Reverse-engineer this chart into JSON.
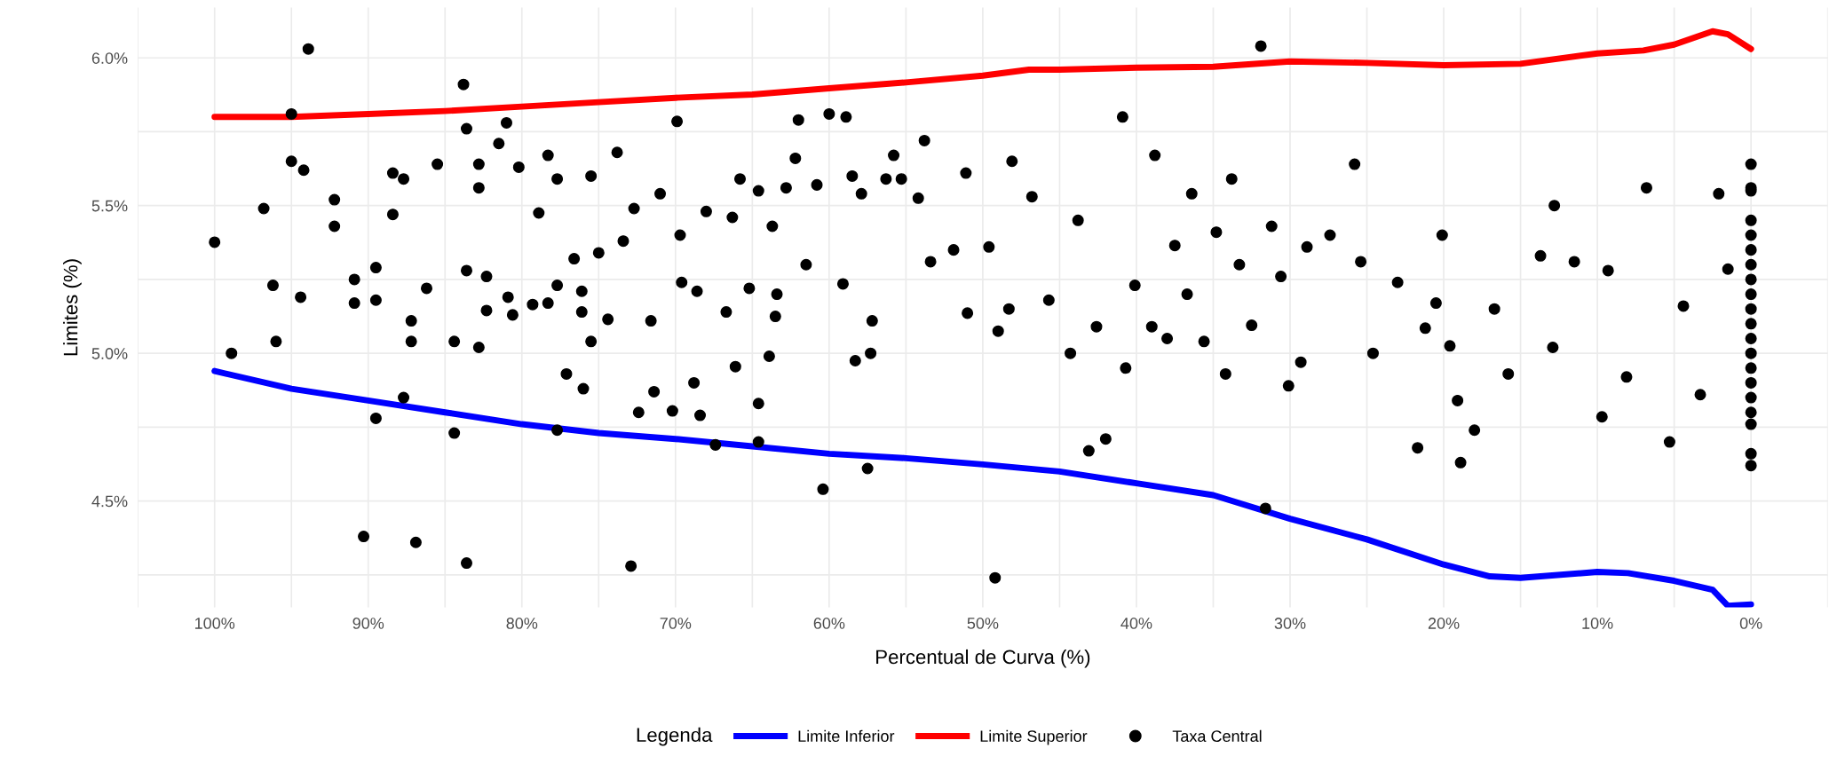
{
  "chart_data": {
    "type": "line",
    "xlabel": "Percentual de Curva (%)",
    "ylabel": "Limites (%)",
    "legend_title": "Legenda",
    "legend": "bottom",
    "grid": true,
    "xlim": [
      105,
      -5
    ],
    "ylim": [
      4.14,
      6.17
    ],
    "xticks": [
      {
        "value": 100,
        "label": "100%"
      },
      {
        "value": 90,
        "label": "90%"
      },
      {
        "value": 80,
        "label": "80%"
      },
      {
        "value": 70,
        "label": "70%"
      },
      {
        "value": 60,
        "label": "60%"
      },
      {
        "value": 50,
        "label": "50%"
      },
      {
        "value": 40,
        "label": "40%"
      },
      {
        "value": 30,
        "label": "30%"
      },
      {
        "value": 20,
        "label": "20%"
      },
      {
        "value": 10,
        "label": "10%"
      },
      {
        "value": 0,
        "label": "0%"
      }
    ],
    "yticks": [
      {
        "value": 4.5,
        "label": "4.5%"
      },
      {
        "value": 5.0,
        "label": "5.0%"
      },
      {
        "value": 5.5,
        "label": "5.5%"
      },
      {
        "value": 6.0,
        "label": "6.0%"
      }
    ],
    "series": [
      {
        "name": "Limite Inferior",
        "color": "#0000ff",
        "marker": "none",
        "line_style": "solid",
        "x": [
          100,
          95,
          90,
          85,
          80,
          75,
          70,
          65,
          60,
          55,
          50,
          45,
          40,
          35,
          30,
          25,
          20,
          17,
          15,
          10,
          8,
          5,
          2.5,
          1.5,
          0
        ],
        "values": [
          4.94,
          4.88,
          4.84,
          4.8,
          4.76,
          4.73,
          4.71,
          4.685,
          4.66,
          4.645,
          4.624,
          4.6,
          4.56,
          4.52,
          4.44,
          4.37,
          4.285,
          4.245,
          4.24,
          4.26,
          4.256,
          4.23,
          4.2,
          4.145,
          4.15
        ]
      },
      {
        "name": "Limite Superior",
        "color": "#ff0000",
        "marker": "none",
        "line_style": "solid",
        "x": [
          100,
          95,
          90,
          85,
          80,
          75,
          70,
          65,
          60,
          55,
          50,
          47,
          45,
          40,
          35,
          30,
          25,
          20,
          15,
          10,
          7,
          5,
          2.5,
          1.5,
          0
        ],
        "values": [
          5.8,
          5.8,
          5.81,
          5.82,
          5.835,
          5.85,
          5.865,
          5.876,
          5.897,
          5.917,
          5.94,
          5.96,
          5.96,
          5.967,
          5.97,
          5.988,
          5.983,
          5.975,
          5.98,
          6.015,
          6.025,
          6.045,
          6.09,
          6.08,
          6.03
        ]
      },
      {
        "name": "Taxa Central",
        "type": "scatter",
        "color": "#000000",
        "marker": "circle",
        "x": [
          100,
          98.9,
          96.8,
          96.2,
          96.0,
          95,
          93.9,
          95,
          94.2,
          94.4,
          92.2,
          92.2,
          90.9,
          90.9,
          90.3,
          89.5,
          89.5,
          89.5,
          88.4,
          88.4,
          87.7,
          87.7,
          87.2,
          87.2,
          86.9,
          86.2,
          85.5,
          84.4,
          84.4,
          83.8,
          83.6,
          83.6,
          83.6,
          82.8,
          82.8,
          82.8,
          82.3,
          82.3,
          81.5,
          81.0,
          80.9,
          80.6,
          80.2,
          79.3,
          78.9,
          78.3,
          78.3,
          77.7,
          77.7,
          77.7,
          77.1,
          76.6,
          76.1,
          76.1,
          76.0,
          75.5,
          75.5,
          75.0,
          74.4,
          73.8,
          73.4,
          72.9,
          72.7,
          72.4,
          71.6,
          71.4,
          71.0,
          70.2,
          69.9,
          69.7,
          69.6,
          68.8,
          68.6,
          68.4,
          68.0,
          67.4,
          66.7,
          66.3,
          66.1,
          65.8,
          65.2,
          64.6,
          64.6,
          64.6,
          63.9,
          63.7,
          63.5,
          63.4,
          62.8,
          62.2,
          62.0,
          61.5,
          60.8,
          60.4,
          60.0,
          59.1,
          58.9,
          58.5,
          58.3,
          57.9,
          57.5,
          57.3,
          57.2,
          56.3,
          55.8,
          55.3,
          54.2,
          53.8,
          53.4,
          51.9,
          51.1,
          51.0,
          49.6,
          49.2,
          49.0,
          48.3,
          48.1,
          46.8,
          45.7,
          44.3,
          43.8,
          43.1,
          42.6,
          42.0,
          40.9,
          40.7,
          40.1,
          39.0,
          38.8,
          38.0,
          37.5,
          36.7,
          36.4,
          35.6,
          34.8,
          34.2,
          33.8,
          33.3,
          32.5,
          31.9,
          31.6,
          31.2,
          30.6,
          30.1,
          29.3,
          28.9,
          27.4,
          25.8,
          25.4,
          24.6,
          23.0,
          21.7,
          21.2,
          20.5,
          20.1,
          19.6,
          19.1,
          18.9,
          18.0,
          16.7,
          15.8,
          13.7,
          12.9,
          12.8,
          11.5,
          9.7,
          9.3,
          8.1,
          6.8,
          5.3,
          4.4,
          3.3,
          2.1,
          1.5,
          0,
          0,
          0,
          0,
          0,
          0,
          0,
          0,
          0,
          0,
          0,
          0,
          0,
          0,
          0,
          0,
          0,
          0,
          0,
          0
        ],
        "values": [
          5.376,
          5.0,
          5.49,
          5.23,
          5.04,
          5.81,
          6.03,
          5.65,
          5.62,
          5.19,
          5.43,
          5.52,
          5.25,
          5.17,
          4.38,
          5.18,
          5.29,
          4.78,
          5.61,
          5.47,
          4.85,
          5.59,
          5.04,
          5.11,
          4.36,
          5.22,
          5.64,
          5.04,
          4.73,
          5.91,
          4.29,
          5.76,
          5.28,
          5.56,
          5.64,
          5.02,
          5.26,
          5.145,
          5.71,
          5.78,
          5.19,
          5.13,
          5.63,
          5.165,
          5.475,
          5.67,
          5.17,
          4.74,
          5.23,
          5.59,
          4.93,
          5.32,
          5.21,
          5.14,
          4.88,
          5.6,
          5.04,
          5.34,
          5.115,
          5.68,
          5.38,
          4.28,
          5.49,
          4.8,
          5.11,
          4.87,
          5.54,
          4.805,
          5.785,
          5.4,
          5.24,
          4.9,
          5.21,
          4.79,
          5.48,
          4.69,
          5.14,
          5.46,
          4.955,
          5.59,
          5.22,
          4.7,
          5.55,
          4.83,
          4.99,
          5.43,
          5.125,
          5.2,
          5.56,
          5.66,
          5.79,
          5.3,
          5.57,
          4.54,
          5.81,
          5.235,
          5.8,
          5.6,
          4.975,
          5.54,
          4.61,
          5.0,
          5.11,
          5.59,
          5.67,
          5.59,
          5.525,
          5.72,
          5.31,
          5.35,
          5.61,
          5.136,
          5.36,
          4.24,
          5.075,
          5.15,
          5.65,
          5.53,
          5.18,
          5.0,
          5.45,
          4.67,
          5.09,
          4.71,
          5.8,
          4.95,
          5.23,
          5.09,
          5.67,
          5.05,
          5.365,
          5.2,
          5.54,
          5.04,
          5.41,
          4.93,
          5.59,
          5.3,
          5.095,
          6.04,
          4.475,
          5.43,
          5.26,
          4.89,
          4.97,
          5.36,
          5.4,
          5.64,
          5.31,
          5.0,
          5.24,
          4.68,
          5.085,
          5.17,
          5.4,
          5.025,
          4.84,
          4.63,
          4.74,
          5.15,
          4.93,
          5.33,
          5.02,
          5.5,
          5.31,
          4.785,
          5.28,
          4.92,
          5.56,
          4.7,
          5.16,
          4.86,
          5.54,
          5.285,
          5.64,
          5.56,
          5.55,
          5.45,
          5.4,
          5.35,
          5.3,
          5.25,
          5.2,
          5.15,
          5.1,
          5.05,
          5.0,
          4.95,
          4.9,
          4.85,
          4.8,
          4.76,
          4.66,
          4.62
        ]
      }
    ]
  }
}
